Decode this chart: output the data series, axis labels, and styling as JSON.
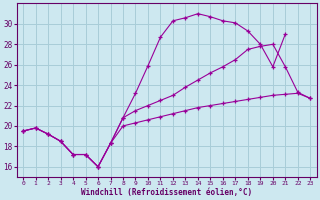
{
  "bg_color": "#cde8f0",
  "line_color": "#990099",
  "grid_color": "#a8cdd8",
  "xlabel": "Windchill (Refroidissement éolien,°C)",
  "xlabel_color": "#660066",
  "tick_color": "#660066",
  "xlim": [
    -0.5,
    23.5
  ],
  "ylim": [
    15.0,
    32.0
  ],
  "yticks": [
    16,
    18,
    20,
    22,
    24,
    26,
    28,
    30
  ],
  "xticks": [
    0,
    1,
    2,
    3,
    4,
    5,
    6,
    7,
    8,
    9,
    10,
    11,
    12,
    13,
    14,
    15,
    16,
    17,
    18,
    19,
    20,
    21,
    22,
    23
  ],
  "curve1_x": [
    0,
    1,
    2,
    3,
    4,
    5,
    6,
    7,
    8,
    9,
    10,
    11,
    12,
    13,
    14,
    15,
    16,
    17,
    18,
    19,
    20,
    21
  ],
  "curve1_y": [
    19.5,
    19.8,
    19.2,
    18.5,
    17.2,
    17.2,
    16.0,
    18.3,
    20.8,
    23.2,
    25.9,
    28.7,
    30.3,
    30.6,
    31.0,
    30.7,
    30.3,
    30.1,
    29.3,
    28.0,
    25.8,
    29.0
  ],
  "curve2_x": [
    0,
    1,
    2,
    3,
    4,
    5,
    6,
    7,
    8,
    9,
    10,
    11,
    12,
    13,
    14,
    15,
    16,
    17,
    18,
    19,
    20,
    21,
    22,
    23
  ],
  "curve2_y": [
    19.5,
    19.8,
    19.2,
    18.5,
    17.2,
    17.2,
    16.0,
    18.3,
    20.8,
    21.5,
    22.0,
    22.5,
    23.0,
    23.8,
    24.5,
    25.2,
    25.8,
    26.5,
    27.5,
    27.8,
    28.0,
    25.8,
    23.3,
    22.7
  ],
  "curve3_x": [
    0,
    1,
    2,
    3,
    4,
    5,
    6,
    7,
    8,
    9,
    10,
    11,
    12,
    13,
    14,
    15,
    16,
    17,
    18,
    19,
    20,
    21,
    22,
    23
  ],
  "curve3_y": [
    19.5,
    19.8,
    19.2,
    18.5,
    17.2,
    17.2,
    16.0,
    18.3,
    20.0,
    20.3,
    20.6,
    20.9,
    21.2,
    21.5,
    21.8,
    22.0,
    22.2,
    22.4,
    22.6,
    22.8,
    23.0,
    23.1,
    23.2,
    22.7
  ]
}
